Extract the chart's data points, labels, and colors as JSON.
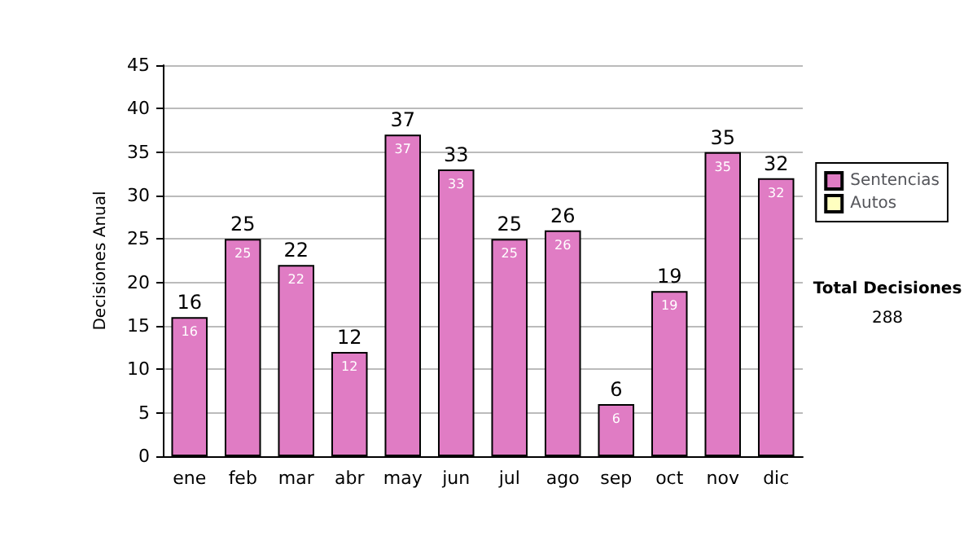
{
  "chart_data": {
    "type": "bar",
    "stacked": true,
    "categories": [
      "ene",
      "feb",
      "mar",
      "abr",
      "may",
      "jun",
      "jul",
      "ago",
      "sep",
      "oct",
      "nov",
      "dic"
    ],
    "series": [
      {
        "name": "Sentencias",
        "color": "#e07cc4",
        "values": [
          16,
          25,
          22,
          12,
          37,
          33,
          25,
          26,
          6,
          19,
          35,
          32
        ],
        "value_labels": [
          "16",
          "25",
          "22",
          "12",
          "37",
          "33",
          "25",
          "26",
          "6",
          "19",
          "35",
          "32"
        ]
      },
      {
        "name": "Autos",
        "color": "#ffffc0",
        "values": [
          null,
          null,
          null,
          null,
          null,
          null,
          null,
          null,
          null,
          null,
          null,
          null
        ]
      }
    ],
    "totals": [
      "16",
      "25",
      "22",
      "12",
      "37",
      "33",
      "25",
      "26",
      "6",
      "19",
      "35",
      "32"
    ],
    "ylabel": "Decisiones Anual",
    "ylim": [
      0,
      45
    ],
    "yticks": [
      0,
      5,
      10,
      15,
      20,
      25,
      30,
      35,
      40,
      45
    ],
    "grid": "y",
    "legend": "right",
    "annotations": [
      "Total Decisiones",
      "288"
    ]
  }
}
